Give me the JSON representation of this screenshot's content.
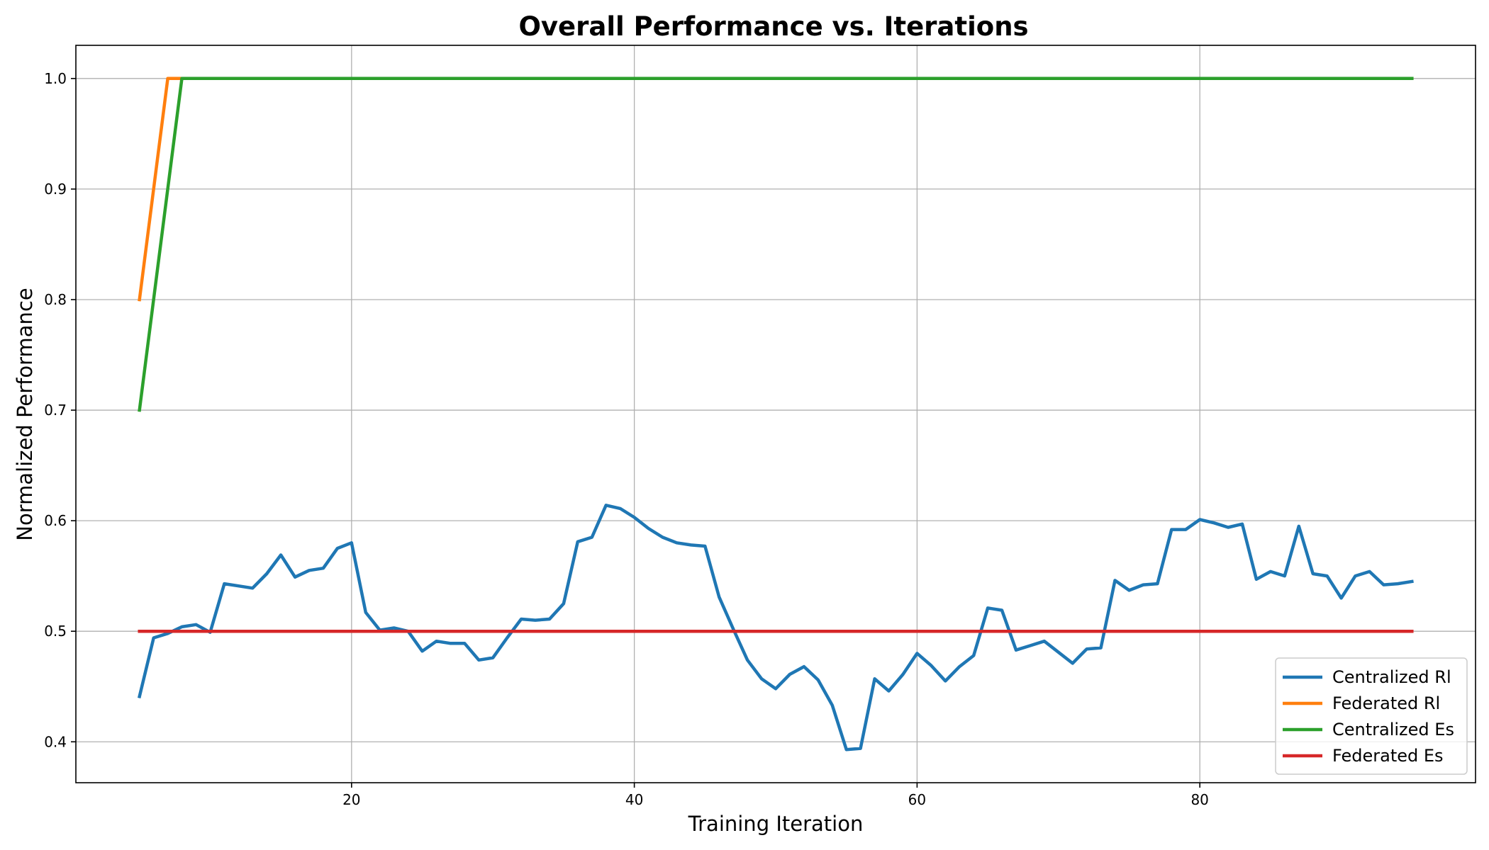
{
  "chart_data": {
    "type": "line",
    "title": "Overall Performance vs. Iterations",
    "xlabel": "Training Iteration",
    "ylabel": "Normalized Performance",
    "xlim": [
      0.5,
      99.5
    ],
    "ylim": [
      0.363,
      1.03
    ],
    "xticks": [
      20,
      40,
      60,
      80
    ],
    "yticks": [
      0.4,
      0.5,
      0.6,
      0.7,
      0.8,
      0.9,
      1.0
    ],
    "ytick_labels": [
      "0.4",
      "0.5",
      "0.6",
      "0.7",
      "0.8",
      "0.9",
      "1.0"
    ],
    "grid": true,
    "legend_position": "lower-right",
    "series": [
      {
        "name": "Centralized Rl",
        "color": "#1f77b4",
        "x": [
          5,
          6,
          7,
          8,
          9,
          10,
          11,
          12,
          13,
          14,
          15,
          16,
          17,
          18,
          19,
          20,
          21,
          22,
          23,
          24,
          25,
          26,
          27,
          28,
          29,
          30,
          31,
          32,
          33,
          34,
          35,
          36,
          37,
          38,
          39,
          40,
          41,
          42,
          43,
          44,
          45,
          46,
          47,
          48,
          49,
          50,
          51,
          52,
          53,
          54,
          55,
          56,
          57,
          58,
          59,
          60,
          61,
          62,
          63,
          64,
          65,
          66,
          67,
          68,
          69,
          70,
          71,
          72,
          73,
          74,
          75,
          76,
          77,
          78,
          79,
          80,
          81,
          82,
          83,
          84,
          85,
          86,
          87,
          88,
          89,
          90,
          91,
          92,
          93,
          94,
          95
        ],
        "y": [
          0.441,
          0.494,
          0.498,
          0.504,
          0.506,
          0.499,
          0.543,
          0.541,
          0.539,
          0.552,
          0.569,
          0.549,
          0.555,
          0.557,
          0.575,
          0.58,
          0.517,
          0.501,
          0.503,
          0.5,
          0.482,
          0.491,
          0.489,
          0.489,
          0.474,
          0.476,
          0.494,
          0.511,
          0.51,
          0.511,
          0.525,
          0.581,
          0.585,
          0.614,
          0.611,
          0.603,
          0.593,
          0.585,
          0.58,
          0.578,
          0.577,
          0.531,
          0.502,
          0.474,
          0.457,
          0.448,
          0.461,
          0.468,
          0.456,
          0.433,
          0.393,
          0.394,
          0.457,
          0.446,
          0.461,
          0.48,
          0.469,
          0.455,
          0.468,
          0.478,
          0.521,
          0.519,
          0.483,
          0.487,
          0.491,
          0.481,
          0.471,
          0.484,
          0.485,
          0.546,
          0.537,
          0.542,
          0.543,
          0.592,
          0.592,
          0.601,
          0.598,
          0.594,
          0.597,
          0.547,
          0.554,
          0.55,
          0.595,
          0.552,
          0.55,
          0.53,
          0.55,
          0.554,
          0.542,
          0.543,
          0.545
        ]
      },
      {
        "name": "Federated Rl",
        "color": "#ff7f0e",
        "x": [
          5,
          7,
          95
        ],
        "y": [
          0.8,
          1.0,
          1.0
        ]
      },
      {
        "name": "Centralized Es",
        "color": "#2ca02c",
        "x": [
          5,
          8,
          95
        ],
        "y": [
          0.7,
          1.0,
          1.0
        ]
      },
      {
        "name": "Federated Es",
        "color": "#d62728",
        "x": [
          5,
          95
        ],
        "y": [
          0.5,
          0.5
        ]
      }
    ]
  }
}
